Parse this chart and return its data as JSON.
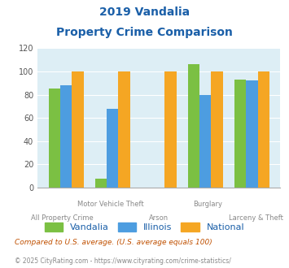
{
  "title_line1": "2019 Vandalia",
  "title_line2": "Property Crime Comparison",
  "categories": [
    "All Property Crime",
    "Motor Vehicle Theft",
    "Arson",
    "Burglary",
    "Larceny & Theft"
  ],
  "vandalia": [
    85,
    8,
    0,
    106,
    93
  ],
  "illinois": [
    88,
    68,
    0,
    80,
    92
  ],
  "national": [
    100,
    100,
    100,
    100,
    100
  ],
  "color_vandalia": "#7bc043",
  "color_illinois": "#4d9de0",
  "color_national": "#f5a623",
  "ylim": [
    0,
    120
  ],
  "yticks": [
    0,
    20,
    40,
    60,
    80,
    100,
    120
  ],
  "background_color": "#ddeef5",
  "title_color": "#1a5fa8",
  "xlabel_color": "#888888",
  "legend_fontsize": 8,
  "footnote1": "Compared to U.S. average. (U.S. average equals 100)",
  "footnote2": "© 2025 CityRating.com - https://www.cityrating.com/crime-statistics/",
  "footnote1_color": "#c05000",
  "footnote2_color": "#888888",
  "upper_labels": [
    "",
    "Motor Vehicle Theft",
    "",
    "Burglary",
    ""
  ],
  "lower_labels": [
    "All Property Crime",
    "",
    "Arson",
    "",
    "Larceny & Theft"
  ]
}
